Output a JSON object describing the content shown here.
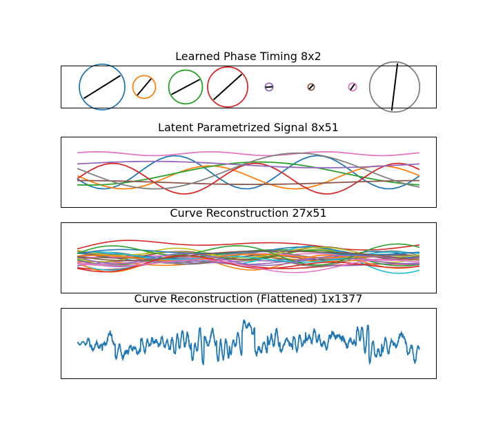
{
  "chart_data": [
    {
      "type": "phase-circles",
      "title": "Learned Phase Timing 8x2",
      "series": [
        {
          "color": "#1f77b4",
          "radius": 1.0,
          "angle_deg": 32
        },
        {
          "color": "#ff7f0e",
          "radius": 0.5,
          "angle_deg": 50
        },
        {
          "color": "#2ca02c",
          "radius": 0.74,
          "angle_deg": 28
        },
        {
          "color": "#d62728",
          "radius": 0.88,
          "angle_deg": 42
        },
        {
          "color": "#9467bd",
          "radius": 0.17,
          "angle_deg": 5
        },
        {
          "color": "#8c564b",
          "radius": 0.14,
          "angle_deg": 48
        },
        {
          "color": "#e377c2",
          "radius": 0.17,
          "angle_deg": 55
        },
        {
          "color": "#7f7f7f",
          "radius": 1.1,
          "angle_deg": 83
        }
      ]
    },
    {
      "type": "line",
      "title": "Latent Parametrized Signal 8x51",
      "x_count": 51,
      "series": [
        {
          "color": "#1f77b4",
          "mean": 0.0,
          "amp": 0.26,
          "freq": 2.4,
          "phase": 3.55
        },
        {
          "color": "#ff7f0e",
          "mean": -0.08,
          "amp": 0.18,
          "freq": 2.0,
          "phase": 3.0
        },
        {
          "color": "#2ca02c",
          "mean": -0.02,
          "amp": 0.18,
          "freq": 1.0,
          "phase": 4.5
        },
        {
          "color": "#d62728",
          "mean": -0.1,
          "amp": 0.24,
          "freq": 2.4,
          "phase": 0.0
        },
        {
          "color": "#9467bd",
          "mean": 0.12,
          "amp": 0.05,
          "freq": 1.0,
          "phase": 0.2
        },
        {
          "color": "#8c564b",
          "mean": -0.16,
          "amp": 0.03,
          "freq": 1.0,
          "phase": 1.5
        },
        {
          "color": "#e377c2",
          "mean": 0.29,
          "amp": 0.03,
          "freq": 3.0,
          "phase": 0.5
        },
        {
          "color": "#7f7f7f",
          "mean": 0.02,
          "amp": 0.28,
          "freq": 1.2,
          "phase": 3.0
        }
      ],
      "ylim": [
        -0.55,
        0.55
      ]
    },
    {
      "type": "line",
      "title": "Curve Reconstruction 27x51",
      "x_count": 51,
      "series_count": 27,
      "colors": [
        "#1f77b4",
        "#ff7f0e",
        "#2ca02c",
        "#d62728",
        "#9467bd",
        "#8c564b",
        "#e377c2",
        "#7f7f7f",
        "#bcbd22",
        "#17becf"
      ],
      "ylim": [
        -0.55,
        0.55
      ]
    },
    {
      "type": "line",
      "title": "Curve Reconstruction (Flattened) 1x1377",
      "x_count": 1377,
      "color": "#1f77b4",
      "ylim": [
        -0.55,
        0.55
      ]
    }
  ]
}
